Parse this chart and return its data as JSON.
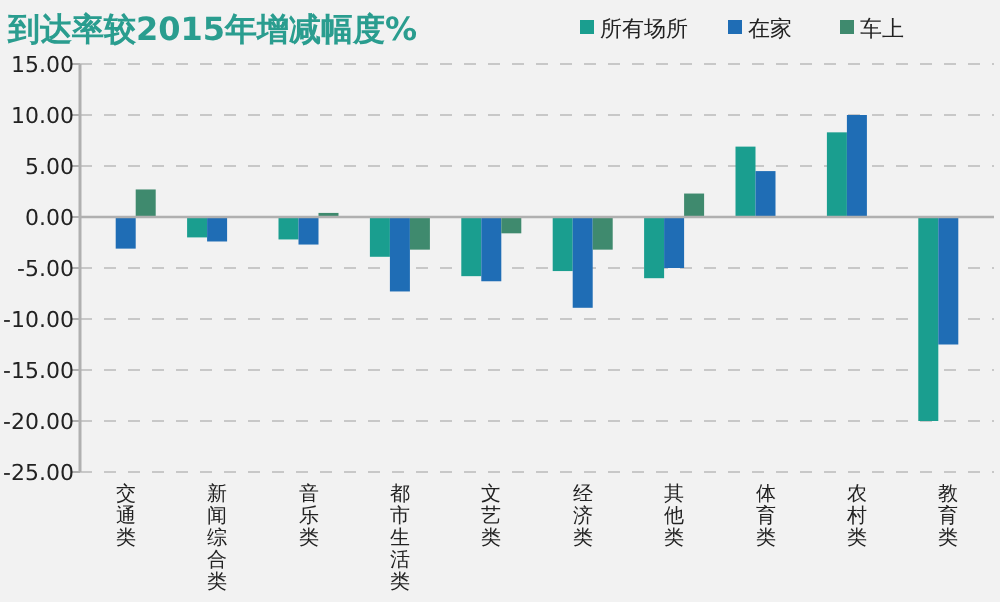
{
  "chart_data": {
    "type": "bar",
    "title": "到达率较2015年增减幅度%",
    "categories": [
      "交通类",
      "新闻综合类",
      "音乐类",
      "都市生活类",
      "文艺类",
      "经济类",
      "其他类",
      "体育类",
      "农村类",
      "教育类"
    ],
    "series": [
      {
        "name": "所有场所",
        "color": "#1a9e8f",
        "values": [
          null,
          -2.0,
          -2.2,
          -3.9,
          -5.8,
          -5.3,
          -6.0,
          6.9,
          8.3,
          -20.0
        ]
      },
      {
        "name": "在家",
        "color": "#1f6db5",
        "values": [
          -3.1,
          -2.4,
          -2.7,
          -7.3,
          -6.3,
          -8.9,
          -5.0,
          4.5,
          10.0,
          -12.5
        ]
      },
      {
        "name": "车上",
        "color": "#3f8a6e",
        "values": [
          2.7,
          null,
          0.4,
          -3.2,
          -1.6,
          -3.2,
          2.3,
          null,
          null,
          null
        ]
      }
    ],
    "ylim": [
      -25,
      15
    ],
    "yticks": [
      {
        "value": -25,
        "label": "-25.00"
      },
      {
        "value": -20,
        "label": "-20.00"
      },
      {
        "value": -15,
        "label": "-15.00"
      },
      {
        "value": -10,
        "label": "-10.00"
      },
      {
        "value": -5,
        "label": "-5.00"
      },
      {
        "value": 0,
        "label": "0.00"
      },
      {
        "value": 5,
        "label": "5.00"
      },
      {
        "value": 10,
        "label": "10.00"
      },
      {
        "value": 15,
        "label": "15.00"
      }
    ],
    "grid": "y",
    "legend": "top right"
  }
}
